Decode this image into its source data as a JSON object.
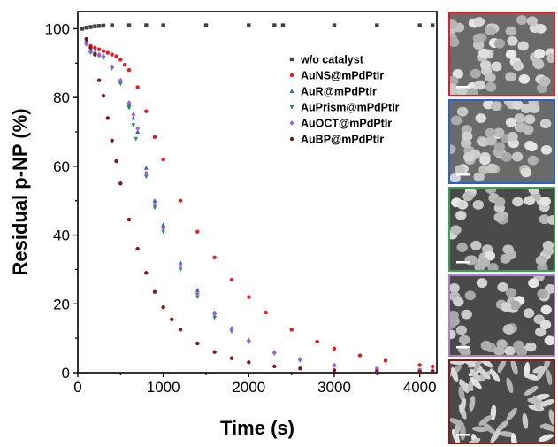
{
  "chart_data": {
    "type": "scatter",
    "title": "",
    "xlabel": "Time (s)",
    "ylabel": "Residual p-NP (%)",
    "xlim": [
      0,
      4200
    ],
    "ylim": [
      0,
      105
    ],
    "xticks": [
      0,
      1000,
      2000,
      3000,
      4000
    ],
    "yticks": [
      0,
      20,
      40,
      60,
      80,
      100
    ],
    "grid": false,
    "legend_position": "top-right",
    "series": [
      {
        "name": "w/o catalyst",
        "color": "#404040",
        "marker": "square",
        "x": [
          50,
          100,
          150,
          200,
          250,
          300,
          400,
          600,
          800,
          1000,
          1500,
          2000,
          2300,
          2400,
          3000,
          3500,
          4000,
          4150
        ],
        "y": [
          100,
          100.3,
          100.5,
          100.7,
          100.8,
          100.9,
          101,
          101,
          101,
          101,
          101,
          101,
          101,
          101,
          101,
          101,
          101,
          101
        ]
      },
      {
        "name": "AuNS@mPdPtIr",
        "color": "#e8191f",
        "marker": "circle",
        "x": [
          100,
          150,
          200,
          250,
          300,
          350,
          400,
          450,
          500,
          550,
          600,
          700,
          800,
          900,
          1000,
          1200,
          1400,
          1600,
          1800,
          2000,
          2200,
          2500,
          2800,
          3000,
          3300,
          3600,
          4000,
          4150
        ],
        "y": [
          96,
          95,
          94.5,
          94,
          93.5,
          93,
          92.5,
          92,
          91,
          89.5,
          88,
          83,
          76,
          68.5,
          62,
          50,
          41,
          33.5,
          27,
          22,
          17.5,
          12.5,
          9,
          7,
          5,
          3.5,
          2.2,
          1.8
        ]
      },
      {
        "name": "AuR@mPdPtIr",
        "color": "#1f66c4",
        "marker": "triangle-up",
        "x": [
          100,
          150,
          200,
          250,
          300,
          400,
          500,
          600,
          650,
          700,
          800,
          900,
          1000,
          1200,
          1400,
          1600,
          1800,
          2000,
          2300,
          2600,
          3000,
          3500,
          4000,
          4150
        ],
        "y": [
          96,
          93.5,
          93,
          92.5,
          92,
          89,
          85,
          78,
          74,
          70,
          59.5,
          50,
          43,
          32,
          24,
          17.5,
          13,
          9.5,
          6,
          4,
          2.2,
          1.2,
          0.8,
          0.7
        ]
      },
      {
        "name": "AuPrism@mPdPtIr",
        "color": "#1a9e3e",
        "marker": "triangle-down",
        "x": [
          100,
          150,
          200,
          250,
          300,
          400,
          500,
          600,
          650,
          680,
          800,
          900,
          1000,
          1200,
          1400,
          1600,
          1800,
          2000,
          2300,
          2600,
          3000,
          3500,
          4000,
          4150
        ],
        "y": [
          95.5,
          93,
          92.5,
          92,
          91.5,
          88.5,
          84,
          77,
          72,
          68,
          57,
          48,
          41,
          30,
          22,
          16,
          12,
          9,
          5.5,
          3.5,
          2,
          1.1,
          0.7,
          0.6
        ]
      },
      {
        "name": "AuOCT@mPdPtIr",
        "color": "#a45ddc",
        "marker": "diamond",
        "x": [
          100,
          150,
          200,
          250,
          300,
          400,
          500,
          600,
          650,
          700,
          800,
          900,
          1000,
          1200,
          1400,
          1600,
          1800,
          2000,
          2300,
          2600,
          3000,
          3500,
          4000,
          4150
        ],
        "y": [
          95.5,
          93.5,
          93,
          92.5,
          92,
          89,
          85,
          78.5,
          75,
          71,
          58,
          49,
          42,
          31,
          23,
          17,
          12.5,
          9.2,
          5.8,
          3.8,
          2.1,
          1.1,
          0.7,
          0.6
        ]
      },
      {
        "name": "AuBP@mPdPtIr",
        "color": "#7b1a1a",
        "marker": "circle",
        "x": [
          100,
          150,
          200,
          250,
          300,
          350,
          400,
          450,
          500,
          600,
          700,
          800,
          900,
          1000,
          1100,
          1200,
          1400,
          1600,
          1800,
          2000,
          2300,
          2600,
          3000,
          3500,
          4000,
          4150
        ],
        "y": [
          97,
          94.5,
          92.5,
          85,
          80.5,
          74,
          67.5,
          61.5,
          55,
          44.5,
          36,
          29,
          23.5,
          19,
          15.5,
          12.5,
          8.5,
          6,
          4.2,
          3,
          1.8,
          1.2,
          0.7,
          0.4,
          0.3,
          0.3
        ]
      }
    ]
  },
  "sem_images": [
    {
      "name": "AuNS",
      "border_color": "#e8191f"
    },
    {
      "name": "AuR",
      "border_color": "#2a5fd0"
    },
    {
      "name": "AuPrism",
      "border_color": "#2ea850"
    },
    {
      "name": "AuOCT",
      "border_color": "#b07ad8"
    },
    {
      "name": "AuBP",
      "border_color": "#8b1a1a"
    }
  ]
}
